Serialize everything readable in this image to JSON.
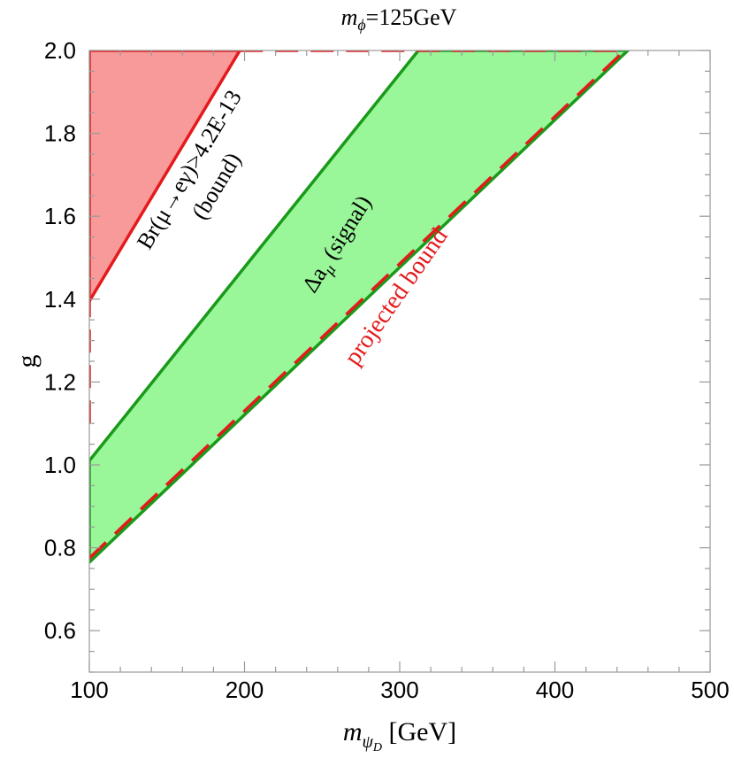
{
  "chart_data": {
    "type": "area",
    "title": {
      "var": "m",
      "sub": "ϕ",
      "rest": "=125GeV"
    },
    "xlabel": {
      "var": "m",
      "sub": "ψ",
      "subsub": "D",
      "rest": " [GeV]"
    },
    "ylabel": "g",
    "xlim": [
      100,
      500
    ],
    "ylim": [
      0.5,
      2.0
    ],
    "xticks": [
      "100",
      "200",
      "300",
      "400",
      "500"
    ],
    "yticks": [
      "0.6",
      "0.8",
      "1.0",
      "1.2",
      "1.4",
      "1.6",
      "1.8",
      "2.0"
    ],
    "regions": [
      {
        "name": "Br(μ→eγ)>4.2E-13 (bound)",
        "fill": "#f99a9a",
        "stroke": "#e41a1c",
        "polygon": [
          [
            100,
            2.0
          ],
          [
            197,
            2.0
          ],
          [
            100,
            1.395
          ]
        ]
      },
      {
        "name": "Δa_μ (signal)",
        "fill": "#99f699",
        "stroke": "#1a9a1a",
        "polygon": [
          [
            100,
            1.01
          ],
          [
            312,
            2.0
          ],
          [
            447,
            2.0
          ],
          [
            100,
            0.765
          ]
        ]
      }
    ],
    "lines": [
      {
        "name": "projected bound",
        "color": "#e41a1c",
        "dashed": true,
        "points": [
          [
            100,
            0.775
          ],
          [
            445,
            2.0
          ]
        ]
      },
      {
        "name": "bound-edge",
        "color": "#e41a1c",
        "dashed": true,
        "points": [
          [
            100,
            1.1
          ],
          [
            100,
            1.395
          ]
        ]
      }
    ],
    "annotations": {
      "bound_line1": "Br(μ→eγ)>4.2E-13",
      "bound_line2": "(bound)",
      "signal": {
        "delta": "Δa",
        "sub": "μ",
        "rest": " (signal)"
      },
      "projected": "projected bound"
    },
    "colors": {
      "red": "#e41a1c",
      "red_fill": "#f99a9a",
      "green": "#1a9a1a",
      "green_fill": "#99f699"
    }
  }
}
